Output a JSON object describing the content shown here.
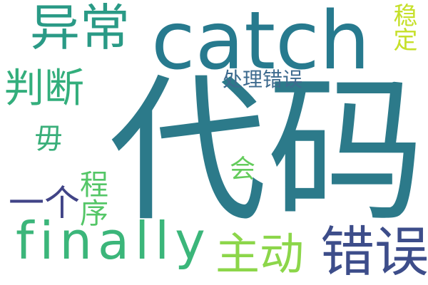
{
  "words": {
    "daima": {
      "text": "代码",
      "color": "#2c7a8a"
    },
    "catch": {
      "text": "catch",
      "color": "#277a8e"
    },
    "yichang": {
      "text": "异常",
      "color": "#2a9a86"
    },
    "panduan": {
      "text": "判断",
      "color": "#33ae7c"
    },
    "finally": {
      "text": "finally",
      "color": "#3bb67a"
    },
    "cuowu": {
      "text": "错误",
      "color": "#3d4d8a"
    },
    "zhudong": {
      "text": "主动",
      "color": "#8cd64a"
    },
    "chulicuowu": {
      "text": "处理错误",
      "color": "#3d6a8e"
    },
    "wending": {
      "text": "稳定",
      "color": "#c6e02a"
    },
    "chengxu": {
      "text": "程序",
      "color": "#54c667"
    },
    "yige": {
      "text": "一个",
      "color": "#414487"
    },
    "mu": {
      "text": "毋",
      "color": "#3aaf7a"
    },
    "hui": {
      "text": "会",
      "color": "#64cc5c"
    }
  }
}
